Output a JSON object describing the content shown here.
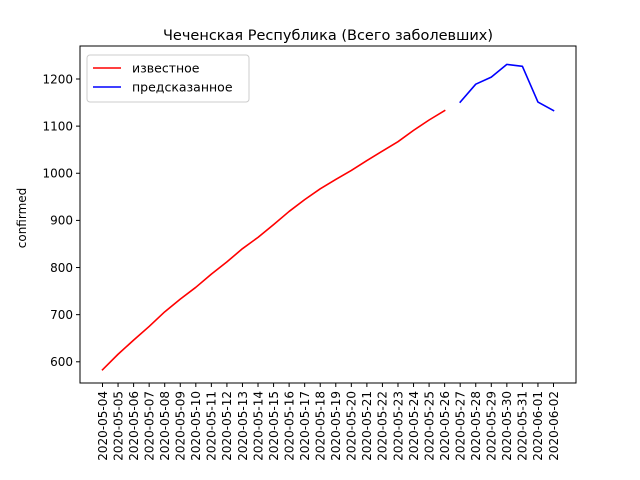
{
  "chart_data": {
    "type": "line",
    "title": "Чеченская Республика (Всего заболевших)",
    "xlabel": "",
    "ylabel": "confirmed",
    "x": [
      "2020-05-04",
      "2020-05-05",
      "2020-05-06",
      "2020-05-07",
      "2020-05-08",
      "2020-05-09",
      "2020-05-10",
      "2020-05-11",
      "2020-05-12",
      "2020-05-13",
      "2020-05-14",
      "2020-05-15",
      "2020-05-16",
      "2020-05-17",
      "2020-05-18",
      "2020-05-19",
      "2020-05-20",
      "2020-05-21",
      "2020-05-22",
      "2020-05-23",
      "2020-05-24",
      "2020-05-25",
      "2020-05-26",
      "2020-05-27",
      "2020-05-28",
      "2020-05-29",
      "2020-05-30",
      "2020-05-31",
      "2020-06-01",
      "2020-06-02"
    ],
    "ylim": [
      555,
      1270
    ],
    "yticks": [
      600,
      700,
      800,
      900,
      1000,
      1100,
      1200
    ],
    "grid": false,
    "legend_position": "top-left",
    "series": [
      {
        "name": "известное",
        "color": "#ff0000",
        "x": [
          "2020-05-04",
          "2020-05-05",
          "2020-05-06",
          "2020-05-07",
          "2020-05-08",
          "2020-05-09",
          "2020-05-10",
          "2020-05-11",
          "2020-05-12",
          "2020-05-13",
          "2020-05-14",
          "2020-05-15",
          "2020-05-16",
          "2020-05-17",
          "2020-05-18",
          "2020-05-19",
          "2020-05-20",
          "2020-05-21",
          "2020-05-22",
          "2020-05-23",
          "2020-05-24",
          "2020-05-25",
          "2020-05-26"
        ],
        "values": [
          583,
          616,
          646,
          675,
          706,
          733,
          758,
          786,
          812,
          840,
          864,
          891,
          919,
          944,
          967,
          987,
          1006,
          1027,
          1047,
          1067,
          1091,
          1113,
          1133
        ]
      },
      {
        "name": "предсказанное",
        "color": "#0000ff",
        "x": [
          "2020-05-27",
          "2020-05-28",
          "2020-05-29",
          "2020-05-30",
          "2020-05-31",
          "2020-06-01",
          "2020-06-02"
        ],
        "values": [
          1151,
          1189,
          1204,
          1231,
          1227,
          1151,
          1133
        ]
      }
    ]
  }
}
